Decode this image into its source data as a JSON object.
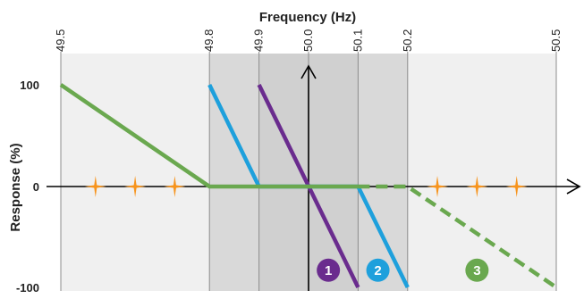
{
  "chart_data": {
    "type": "line",
    "xlabel": "Frequency (Hz)",
    "ylabel": "Response (%)",
    "xlim": [
      49.5,
      50.5
    ],
    "ylim": [
      -100,
      100
    ],
    "x_ticks": [
      "49.5",
      "49.8",
      "49.9",
      "50.0",
      "50.1",
      "50.2",
      "50.5"
    ],
    "y_ticks": [
      "100",
      "0",
      "-100"
    ],
    "deadbands": [
      {
        "from": 49.8,
        "to": 50.2,
        "shade": "#d9d9d9"
      },
      {
        "from": 49.9,
        "to": 50.1,
        "shade": "#d0d0d0"
      }
    ],
    "series": [
      {
        "label": "1",
        "color": "#6a2c8e",
        "dash": false,
        "x": [
          49.9,
          50.1
        ],
        "y": [
          100,
          -100
        ]
      },
      {
        "label": "2",
        "color": "#1ea0dc",
        "dash": false,
        "x": [
          49.8,
          49.9,
          50.1,
          50.2
        ],
        "y": [
          100,
          0,
          0,
          -100
        ]
      },
      {
        "label": "3",
        "color": "#6aa84f",
        "dash_from": 50.1,
        "x": [
          49.5,
          49.8,
          50.1,
          50.2,
          50.5
        ],
        "y": [
          100,
          0,
          0,
          0,
          -100
        ]
      }
    ],
    "markers": {
      "color": "#f7941d",
      "x": [
        49.57,
        49.65,
        49.73,
        50.26,
        50.34,
        50.42
      ],
      "y": [
        0,
        0,
        0,
        0,
        0,
        0
      ]
    }
  }
}
